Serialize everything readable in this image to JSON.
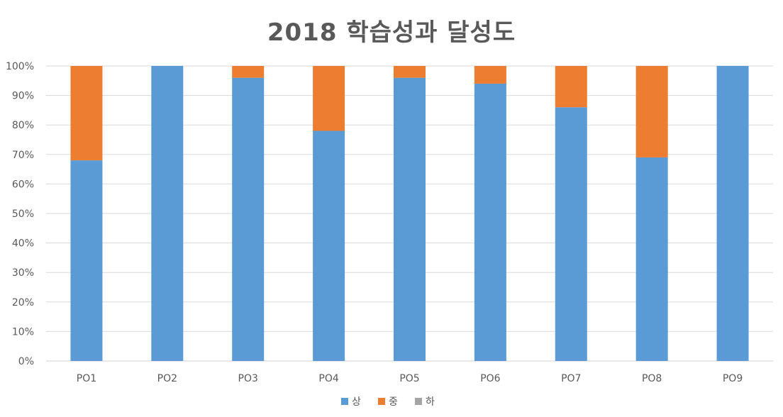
{
  "chart_data": {
    "type": "bar",
    "stacked": true,
    "title": "2018 학습성과 달성도",
    "xlabel": "",
    "ylabel": "",
    "categories": [
      "PO1",
      "PO2",
      "PO3",
      "PO4",
      "PO5",
      "PO6",
      "PO7",
      "PO8",
      "PO9"
    ],
    "series": [
      {
        "name": "상",
        "color": "#5B9BD5",
        "values": [
          68,
          100,
          96,
          78,
          96,
          94,
          86,
          69,
          100
        ]
      },
      {
        "name": "중",
        "color": "#ED7D31",
        "values": [
          32,
          0,
          4,
          22,
          4,
          6,
          14,
          31,
          0
        ]
      },
      {
        "name": "하",
        "color": "#A5A5A5",
        "values": [
          0,
          0,
          0,
          0,
          0,
          0,
          0,
          0,
          0
        ]
      }
    ],
    "ylim": [
      0,
      100
    ],
    "yticks": [
      "0%",
      "10%",
      "20%",
      "30%",
      "40%",
      "50%",
      "60%",
      "70%",
      "80%",
      "90%",
      "100%"
    ],
    "grid": true,
    "legend_position": "bottom"
  }
}
